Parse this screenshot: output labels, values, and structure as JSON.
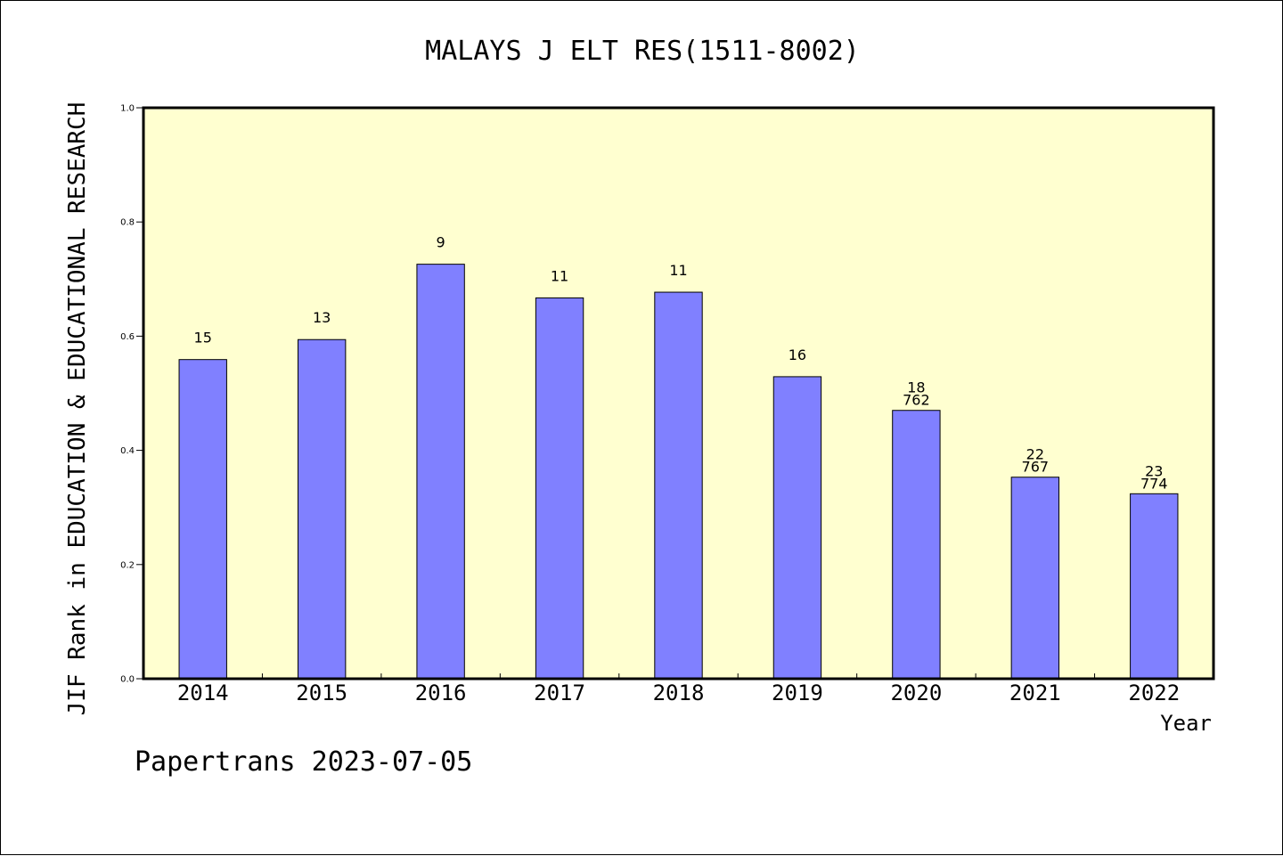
{
  "chart_data": {
    "type": "bar",
    "title": "MALAYS J ELT RES(1511-8002)",
    "xlabel": "Year",
    "ylabel": "JIF Rank in EDUCATION & EDUCATIONAL RESEARCH",
    "categories": [
      "2014",
      "2015",
      "2016",
      "2017",
      "2018",
      "2019",
      "2020",
      "2021",
      "2022"
    ],
    "values": [
      0.559,
      0.594,
      0.726,
      0.667,
      0.677,
      0.529,
      0.47,
      0.353,
      0.324
    ],
    "rank_labels": [
      "15",
      "13",
      "9",
      "11",
      "11",
      "16",
      "18",
      "22",
      "23"
    ],
    "total_labels": [
      "",
      "",
      "",
      "",
      "",
      "",
      "762",
      "767",
      "774"
    ],
    "ylim": [
      0,
      1.0
    ],
    "yticks": [
      "0.0",
      "0.2",
      "0.4",
      "0.6",
      "0.8",
      "1.0"
    ],
    "grid": false,
    "colors": {
      "bar": "#8080ff",
      "plot_background": "#ffffd0",
      "bar_edge": "#000000"
    }
  },
  "footer": "Papertrans 2023-07-05"
}
